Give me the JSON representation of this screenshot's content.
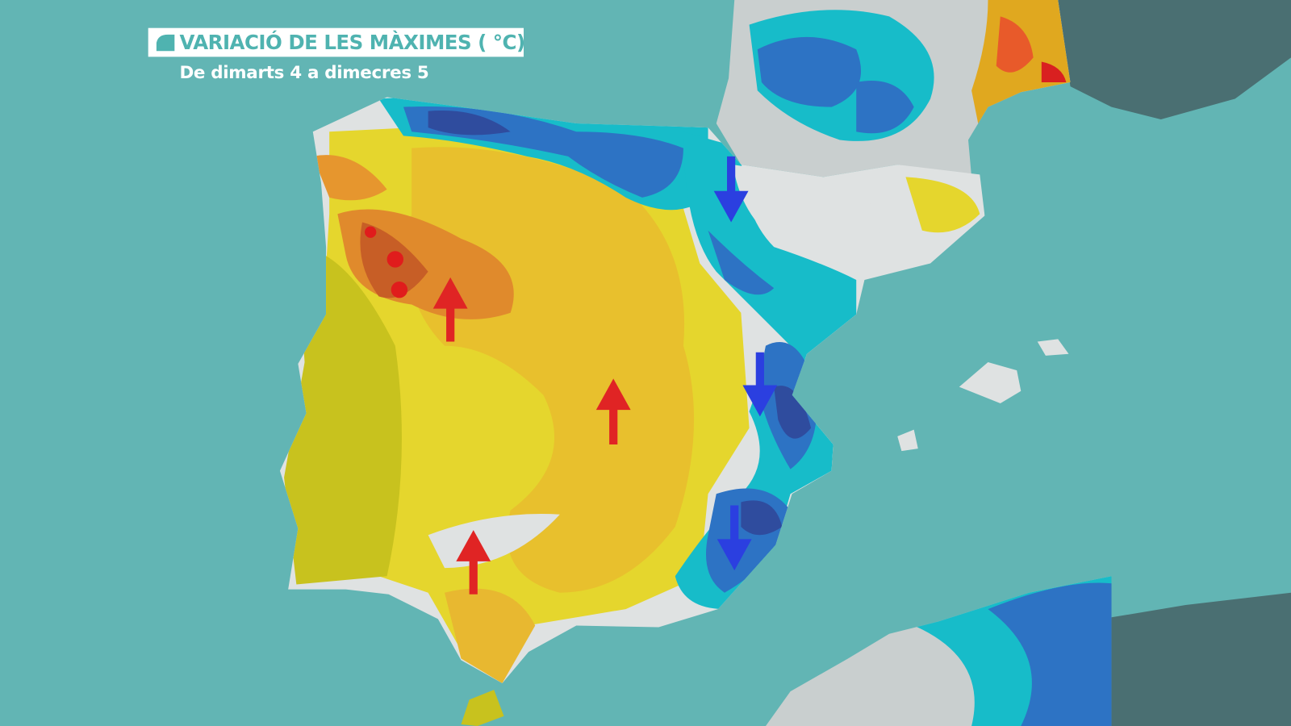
{
  "header": {
    "title": "VARIACIÓ DE LES MÀXIMES ( °C)",
    "subtitle": "De dimarts 4 a dimecres 5"
  }
}
